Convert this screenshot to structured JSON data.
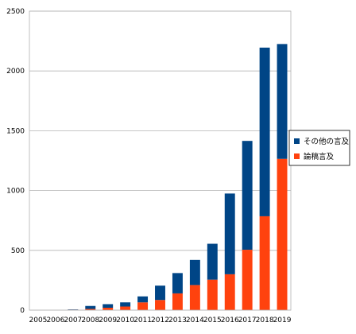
{
  "chart_data": {
    "type": "bar",
    "stacked": true,
    "categories": [
      "2005",
      "2006",
      "2007",
      "2008",
      "2009",
      "2010",
      "2011",
      "2012",
      "2013",
      "2014",
      "2015",
      "2016",
      "2017",
      "2018",
      "2019"
    ],
    "series": [
      {
        "name": "論稿言及",
        "color": "#ff420e",
        "values": [
          0,
          0,
          3,
          10,
          20,
          30,
          65,
          85,
          140,
          210,
          255,
          300,
          505,
          785,
          1265
        ]
      },
      {
        "name": "その他の言及",
        "color": "#004586",
        "values": [
          0,
          0,
          3,
          25,
          30,
          35,
          50,
          120,
          170,
          210,
          300,
          675,
          910,
          1410,
          960
        ]
      }
    ],
    "yticks": [
      "0",
      "500",
      "1000",
      "1500",
      "2000",
      "2500"
    ],
    "ylim": [
      0,
      2500
    ],
    "grid": true,
    "legend": {
      "placement": "right",
      "entries": [
        {
          "label": "その他の言及",
          "color": "#004586"
        },
        {
          "label": "論稿言及",
          "color": "#ff420e"
        }
      ]
    },
    "title": "",
    "xlabel": "",
    "ylabel": ""
  }
}
